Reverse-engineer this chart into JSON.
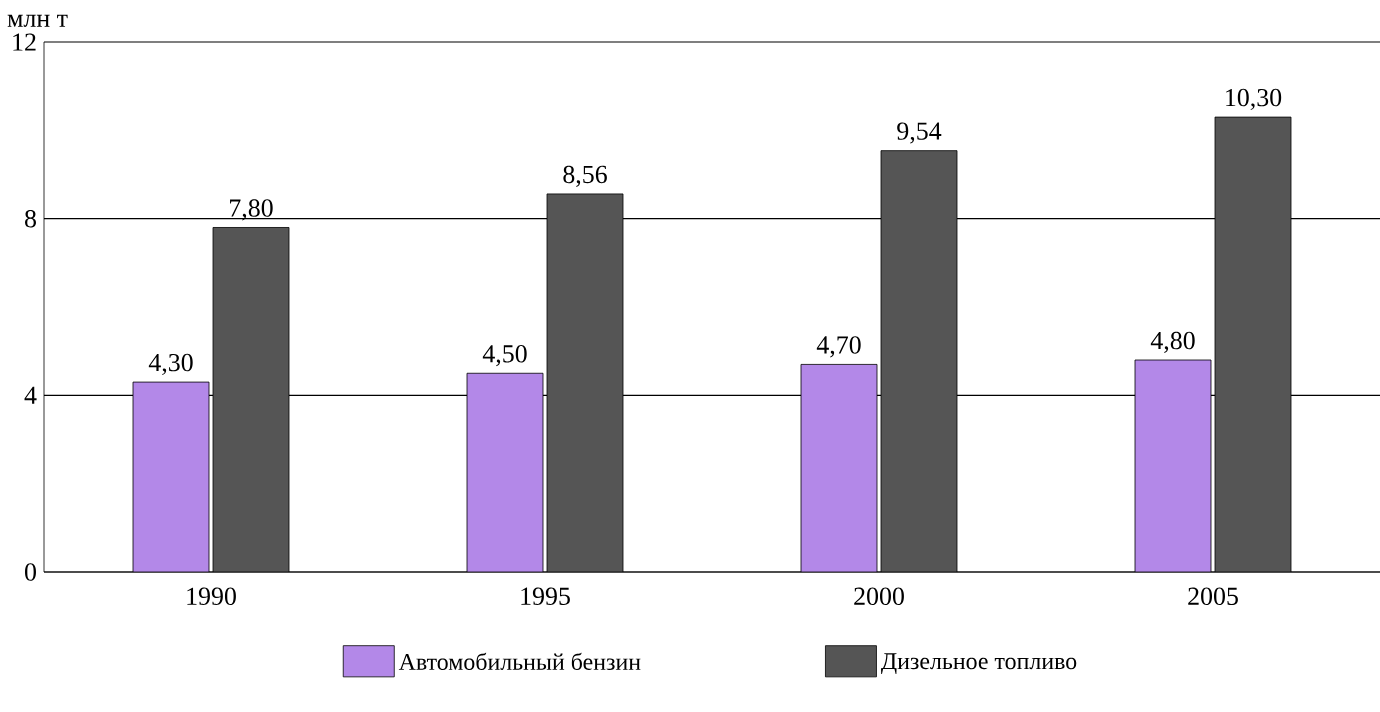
{
  "chart_data": {
    "type": "bar",
    "ylabel": "млн т",
    "categories": [
      "1990",
      "1995",
      "2000",
      "2005"
    ],
    "series": [
      {
        "name": "Автомобильный бензин",
        "color": "#b388e8",
        "values": [
          4.3,
          4.5,
          4.7,
          4.8
        ],
        "value_labels": [
          "4,30",
          "4,50",
          "4,70",
          "4,80"
        ]
      },
      {
        "name": "Дизельное топливо",
        "color": "#555555",
        "values": [
          7.8,
          8.56,
          9.54,
          10.3
        ],
        "value_labels": [
          "7,80",
          "8,56",
          "9,54",
          "10,30"
        ]
      }
    ],
    "ylim": [
      0,
      12
    ],
    "yticks": [
      0,
      4,
      8,
      12
    ],
    "grid": "y",
    "legend": "bottom"
  }
}
